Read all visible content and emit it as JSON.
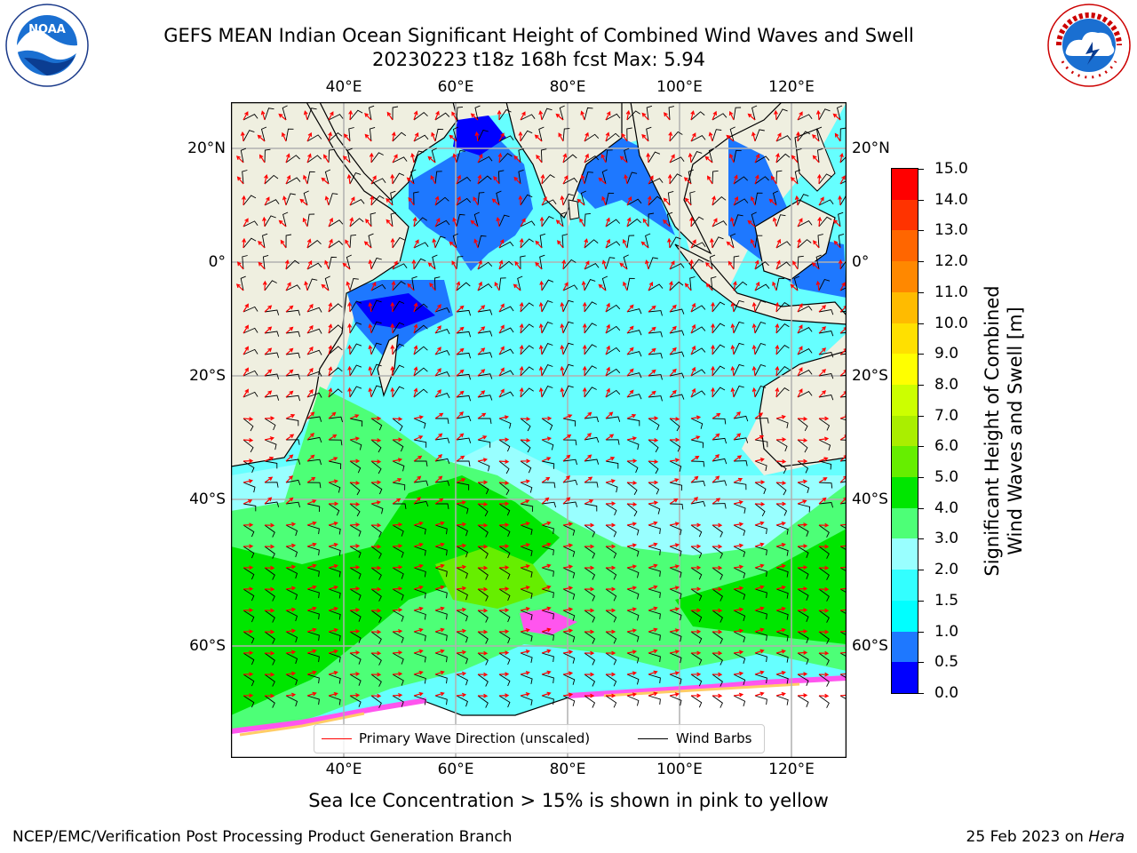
{
  "header": {
    "title_line1": "GEFS MEAN Indian Ocean Significant Height of Combined Wind Waves and Swell",
    "title_line2": "20230223 t18z 168h fcst   Max: 5.94"
  },
  "logos": {
    "left": {
      "icon": "noaa-logo",
      "text": "NOAA",
      "ring_text": "NATIONAL OCEANIC AND ATMOSPHERIC ADMINISTRATION · U.S. DEPARTMENT OF COMMERCE"
    },
    "right": {
      "icon": "nws-logo",
      "ring_text": "NATIONAL WEATHER SERVICE"
    }
  },
  "map": {
    "lon_labels": [
      "40°E",
      "60°E",
      "80°E",
      "100°E",
      "120°E"
    ],
    "lat_labels": [
      "20°N",
      "0°",
      "20°S",
      "40°S",
      "60°S"
    ],
    "land_color": "#efefe0",
    "grid_color": "#b0b0b0"
  },
  "colorbar": {
    "title_line1": "Significant Height of Combined",
    "title_line2": "Wind Waves and Swell [m]",
    "tick_labels": [
      "15.0",
      "14.0",
      "13.0",
      "12.0",
      "11.0",
      "10.0",
      "9.0",
      "8.0",
      "7.0",
      "6.0",
      "5.0",
      "4.0",
      "3.0",
      "2.0",
      "1.5",
      "1.0",
      "0.5",
      "0.0"
    ],
    "colors_bottom_to_top": [
      "#0000ff",
      "#1e78ff",
      "#00ffff",
      "#33ffff",
      "#99ffff",
      "#4dff77",
      "#00e600",
      "#66ee00",
      "#aaee00",
      "#ccff00",
      "#ffff00",
      "#ffe000",
      "#ffbb00",
      "#ff8800",
      "#ff6600",
      "#ff3300",
      "#ff0000"
    ]
  },
  "legend": {
    "wave_label": "Primary Wave Direction (unscaled)",
    "wave_color": "#ff0000",
    "barb_label": "Wind Barbs",
    "barb_color": "#000000"
  },
  "footer": {
    "note": "Sea Ice Concentration > 15% is shown in pink to yellow",
    "org": "NCEP/EMC/Verification Post Processing Product Generation Branch",
    "date": "25 Feb 2023 on ",
    "host": "Hera"
  }
}
